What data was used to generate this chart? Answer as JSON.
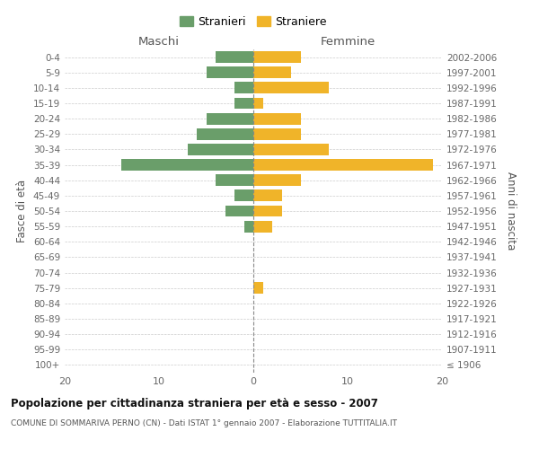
{
  "age_groups": [
    "100+",
    "95-99",
    "90-94",
    "85-89",
    "80-84",
    "75-79",
    "70-74",
    "65-69",
    "60-64",
    "55-59",
    "50-54",
    "45-49",
    "40-44",
    "35-39",
    "30-34",
    "25-29",
    "20-24",
    "15-19",
    "10-14",
    "5-9",
    "0-4"
  ],
  "birth_years": [
    "≤ 1906",
    "1907-1911",
    "1912-1916",
    "1917-1921",
    "1922-1926",
    "1927-1931",
    "1932-1936",
    "1937-1941",
    "1942-1946",
    "1947-1951",
    "1952-1956",
    "1957-1961",
    "1962-1966",
    "1967-1971",
    "1972-1976",
    "1977-1981",
    "1982-1986",
    "1987-1991",
    "1992-1996",
    "1997-2001",
    "2002-2006"
  ],
  "maschi": [
    0,
    0,
    0,
    0,
    0,
    0,
    0,
    0,
    0,
    1,
    3,
    2,
    4,
    14,
    7,
    6,
    5,
    2,
    2,
    5,
    4
  ],
  "femmine": [
    0,
    0,
    0,
    0,
    0,
    1,
    0,
    0,
    0,
    2,
    3,
    3,
    5,
    19,
    8,
    5,
    5,
    1,
    8,
    4,
    5
  ],
  "maschi_color": "#6a9e6a",
  "femmine_color": "#f0b429",
  "bg_color": "#ffffff",
  "grid_color": "#cccccc",
  "title": "Popolazione per cittadinanza straniera per età e sesso - 2007",
  "subtitle": "COMUNE DI SOMMARIVA PERNO (CN) - Dati ISTAT 1° gennaio 2007 - Elaborazione TUTTITALIA.IT",
  "ylabel_left": "Fasce di età",
  "ylabel_right": "Anni di nascita",
  "xlabel_left": "Maschi",
  "xlabel_top_right": "Femmine",
  "legend_stranieri": "Stranieri",
  "legend_straniere": "Straniere",
  "xlim": 20,
  "bar_height": 0.75
}
